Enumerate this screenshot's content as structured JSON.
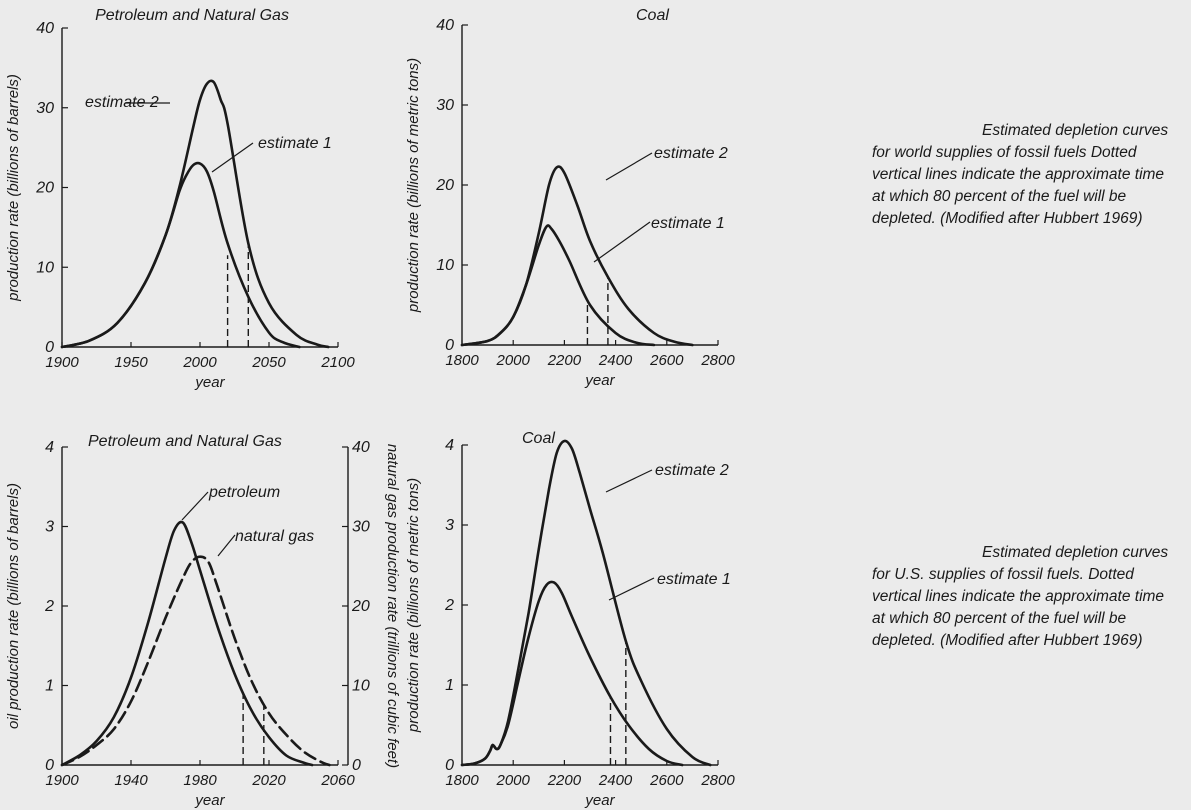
{
  "captions": {
    "world": "Estimated depletion curves for world supplies of fossil fuels Dotted vertical lines indicate the approximate time at which 80 percent of the fuel will be depleted. (Modified after Hubbert 1969)",
    "us": "Estimated depletion curves for U.S. supplies of fossil fuels. Dotted vertical lines indicate the approximate time at which 80 percent of the fuel will be depleted. (Modified after Hubbert 1969)"
  },
  "colors": {
    "background": "#ebebeb",
    "ink": "#1a1a1a"
  },
  "chart_data": [
    {
      "id": "world-petroleum",
      "type": "line",
      "title": "Petroleum and Natural Gas",
      "xlabel": "year",
      "ylabel": "production rate (billions of barrels)",
      "xlim": [
        1900,
        2100
      ],
      "ylim": [
        0,
        40
      ],
      "xticks": [
        "1900",
        "1950",
        "2000",
        "2050",
        "2100"
      ],
      "yticks": [
        "0",
        "10",
        "20",
        "30",
        "40"
      ],
      "series": [
        {
          "name": "estimate 1",
          "style": "solid",
          "x": [
            1900,
            1920,
            1940,
            1960,
            1975,
            1985,
            1990,
            1995,
            2000,
            2005,
            2010,
            2020,
            2035,
            2050,
            2060,
            2072
          ],
          "y": [
            0,
            0.8,
            3,
            8,
            14,
            19.5,
            21.5,
            22.8,
            23,
            22,
            19.5,
            13,
            6.3,
            1.8,
            0.6,
            0
          ]
        },
        {
          "name": "estimate 2",
          "style": "solid",
          "x": [
            1900,
            1920,
            1940,
            1960,
            1975,
            1985,
            1995,
            2000,
            2005,
            2010,
            2015,
            2020,
            2035,
            2050,
            2070,
            2085,
            2093
          ],
          "y": [
            0,
            0.8,
            3,
            8,
            14,
            20,
            27.5,
            31,
            33,
            33.2,
            31,
            28,
            13,
            5.5,
            1.5,
            0.3,
            0
          ]
        }
      ],
      "markers": [
        {
          "x": 2020,
          "y": 11.5,
          "style": "dashed"
        },
        {
          "x": 2035,
          "y": 13,
          "style": "dashed"
        }
      ]
    },
    {
      "id": "world-coal",
      "type": "line",
      "title": "Coal",
      "xlabel": "year",
      "ylabel": "production rate (billions of metric tons)",
      "xlim": [
        1800,
        2800
      ],
      "ylim": [
        0,
        40
      ],
      "xticks": [
        "1800",
        "2000",
        "2200",
        "2400",
        "2600",
        "2800"
      ],
      "yticks": [
        "0",
        "10",
        "20",
        "30",
        "40"
      ],
      "series": [
        {
          "name": "estimate 1",
          "style": "solid",
          "x": [
            1800,
            1900,
            1950,
            2000,
            2050,
            2100,
            2130,
            2150,
            2180,
            2220,
            2300,
            2400,
            2480,
            2550
          ],
          "y": [
            0,
            0.5,
            1.5,
            3.5,
            7.5,
            12.5,
            14.8,
            14.5,
            13,
            10.5,
            5,
            1.5,
            0.3,
            0
          ]
        },
        {
          "name": "estimate 2",
          "style": "solid",
          "x": [
            1800,
            1900,
            1950,
            2000,
            2050,
            2100,
            2140,
            2170,
            2200,
            2250,
            2300,
            2370,
            2450,
            2550,
            2630,
            2700
          ],
          "y": [
            0,
            0.5,
            1.5,
            3.5,
            7.5,
            14,
            20,
            22.2,
            21.5,
            17.5,
            13,
            8.5,
            4.5,
            1.5,
            0.4,
            0
          ]
        }
      ],
      "markers": [
        {
          "x": 2290,
          "y": 5.5,
          "style": "dashed"
        },
        {
          "x": 2370,
          "y": 8.5,
          "style": "dashed"
        }
      ]
    },
    {
      "id": "us-petroleum",
      "type": "line",
      "title": "Petroleum and Natural Gas",
      "xlabel": "year",
      "ylabel": "oil production rate (billions of barrels)",
      "ylabel_right": "natural gas production rate (trillions of cubic feet)",
      "xlim": [
        1900,
        2060
      ],
      "ylim": [
        0,
        4
      ],
      "ylim_right": [
        0,
        40
      ],
      "xticks": [
        "1900",
        "1940",
        "1980",
        "2020",
        "2060"
      ],
      "yticks": [
        "0",
        "1",
        "2",
        "3",
        "4"
      ],
      "yticks_right": [
        "0",
        "10",
        "20",
        "30",
        "40"
      ],
      "series": [
        {
          "name": "petroleum",
          "style": "solid",
          "x": [
            1900,
            1910,
            1920,
            1930,
            1940,
            1950,
            1960,
            1965,
            1970,
            1975,
            1980,
            1990,
            2000,
            2010,
            2020,
            2030,
            2040,
            2045
          ],
          "y": [
            0,
            0.12,
            0.3,
            0.6,
            1.1,
            1.8,
            2.6,
            2.95,
            3.05,
            2.8,
            2.45,
            1.75,
            1.15,
            0.68,
            0.35,
            0.12,
            0.03,
            0
          ]
        },
        {
          "name": "natural gas",
          "style": "dashed",
          "x": [
            1900,
            1910,
            1920,
            1930,
            1940,
            1950,
            1960,
            1970,
            1975,
            1980,
            1985,
            1990,
            2000,
            2010,
            2020,
            2030,
            2040,
            2050,
            2055
          ],
          "y": [
            0,
            0.1,
            0.25,
            0.45,
            0.8,
            1.3,
            1.85,
            2.35,
            2.55,
            2.62,
            2.55,
            2.25,
            1.6,
            1.05,
            0.65,
            0.38,
            0.17,
            0.04,
            0
          ]
        }
      ],
      "markers": [
        {
          "x": 2005,
          "y": 0.92,
          "style": "dashed"
        },
        {
          "x": 2017,
          "y": 0.75,
          "style": "dashed"
        }
      ]
    },
    {
      "id": "us-coal",
      "type": "line",
      "title": "Coal",
      "xlabel": "year",
      "ylabel": "production rate (billions of metric tons)",
      "xlim": [
        1800,
        2800
      ],
      "ylim": [
        0,
        4
      ],
      "xticks": [
        "1800",
        "2000",
        "2200",
        "2400",
        "2600",
        "2800"
      ],
      "yticks": [
        "0",
        "1",
        "2",
        "3",
        "4"
      ],
      "series": [
        {
          "name": "estimate 1",
          "style": "solid",
          "x": [
            1800,
            1850,
            1890,
            1910,
            1920,
            1935,
            1950,
            1980,
            2020,
            2060,
            2100,
            2130,
            2160,
            2190,
            2230,
            2300,
            2380,
            2450,
            2530,
            2600,
            2660
          ],
          "y": [
            0,
            0.02,
            0.08,
            0.18,
            0.25,
            0.2,
            0.25,
            0.5,
            1.05,
            1.6,
            2.05,
            2.25,
            2.28,
            2.15,
            1.85,
            1.35,
            0.85,
            0.5,
            0.2,
            0.05,
            0
          ]
        },
        {
          "name": "estimate 2",
          "style": "solid",
          "x": [
            1800,
            1850,
            1890,
            1910,
            1920,
            1935,
            1950,
            1980,
            2020,
            2060,
            2100,
            2140,
            2170,
            2200,
            2230,
            2260,
            2300,
            2350,
            2440,
            2500,
            2600,
            2700,
            2770
          ],
          "y": [
            0,
            0.02,
            0.08,
            0.18,
            0.25,
            0.2,
            0.25,
            0.55,
            1.2,
            1.9,
            2.7,
            3.45,
            3.9,
            4.05,
            3.95,
            3.65,
            3.2,
            2.65,
            1.55,
            1.05,
            0.45,
            0.1,
            0
          ]
        }
      ],
      "markers": [
        {
          "x": 2380,
          "y": 0.85,
          "style": "dashed"
        },
        {
          "x": 2440,
          "y": 1.55,
          "style": "dashed"
        }
      ]
    }
  ]
}
